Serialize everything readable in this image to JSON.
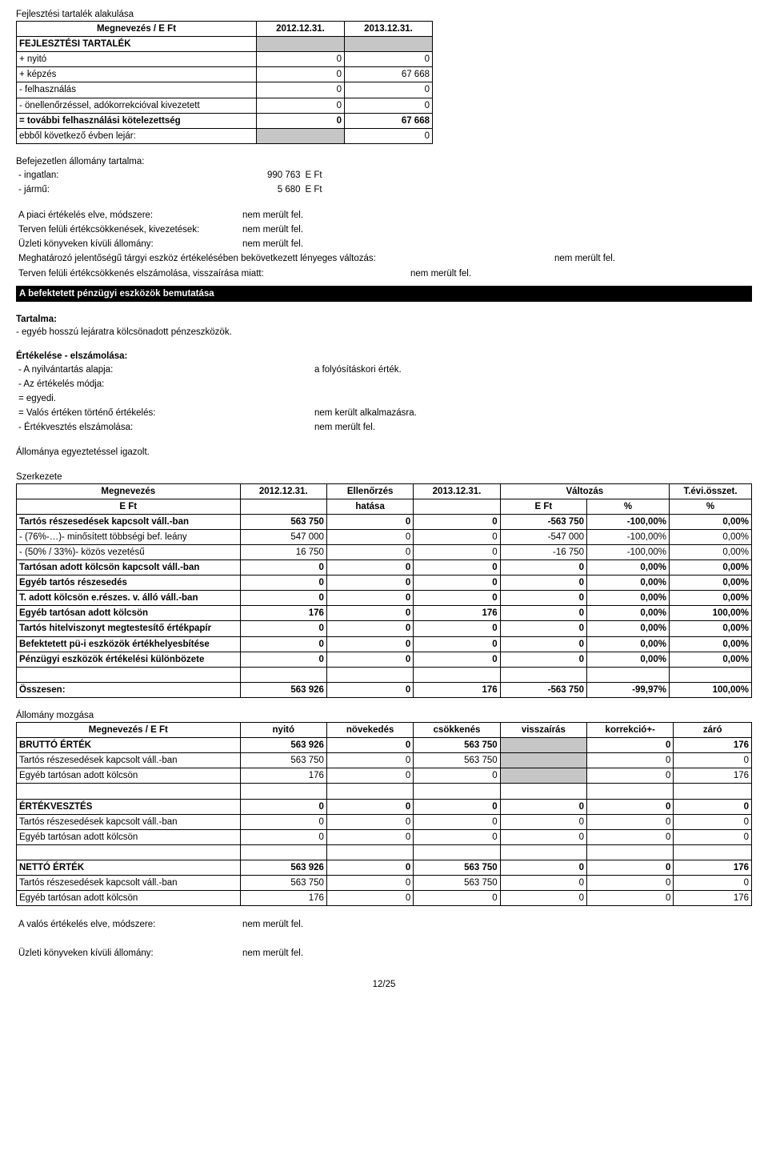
{
  "page": {
    "footer": "12/25"
  },
  "t1": {
    "title": "Fejlesztési tartalék alakulása",
    "header": {
      "name": "Megnevezés / E Ft",
      "c1": "2012.12.31.",
      "c2": "2013.12.31."
    },
    "rows": [
      {
        "label": "FEJLESZTÉSI TARTALÉK",
        "v1": "",
        "v2": "",
        "bold": true,
        "grey": true
      },
      {
        "label": "+ nyitó",
        "v1": "0",
        "v2": "0"
      },
      {
        "label": "+ képzés",
        "v1": "0",
        "v2": "67 668"
      },
      {
        "label": "- felhasználás",
        "v1": "0",
        "v2": "0"
      },
      {
        "label": "- önellenőrzéssel, adókorrekcióval kivezetett",
        "v1": "0",
        "v2": "0"
      },
      {
        "label": "= további felhasználási kötelezettség",
        "v1": "0",
        "v2": "67 668",
        "bold": true
      },
      {
        "label": "ebből következő évben lejár:",
        "v1": "",
        "v2": "0",
        "greyC1": true
      }
    ]
  },
  "befejezetlen": {
    "title": "Befejezetlen állomány tartalma:",
    "rows": [
      {
        "label": "- ingatlan:",
        "val": "990 763",
        "unit": "E Ft"
      },
      {
        "label": "- jármű:",
        "val": "5 680",
        "unit": "E Ft"
      }
    ]
  },
  "piaci": {
    "rows": [
      {
        "label": "A piaci értékelés elve, módszere:",
        "val": "nem merült fel."
      },
      {
        "label": "Terven felüli értékcsökkenések, kivezetések:",
        "val": "nem merült fel."
      },
      {
        "label": "Üzleti könyveken kívüli állomány:",
        "val": "nem merült fel."
      }
    ],
    "line4": {
      "label": "Meghatározó jelentőségű tárgyi eszköz értékelésében bekövetkezett lényeges változás:",
      "val": "nem merült fel."
    },
    "line5": {
      "label": "Terven felüli értékcsökkenés elszámolása, visszaírása miatt:",
      "val": "nem merült fel."
    }
  },
  "bar1": "A befektetett pénzügyi eszközök bemutatása",
  "tartalma": {
    "title": "Tartalma:",
    "line": "- egyéb hosszú lejáratra kölcsönadott pénzeszközök."
  },
  "ertekeles": {
    "title": "Értékelése - elszámolása:",
    "rows": [
      {
        "label": "- A nyilvántartás alapja:",
        "val": "a folyósításkori érték."
      },
      {
        "label": "- Az értékelés módja:",
        "val": ""
      },
      {
        "label": "= egyedi.",
        "val": ""
      },
      {
        "label": "= Valós értéken történő értékelés:",
        "val": "nem került alkalmazásra."
      },
      {
        "label": "- Értékvesztés elszámolása:",
        "val": "nem merült fel."
      }
    ]
  },
  "allomanya": "Állománya egyeztetéssel igazolt.",
  "szerk": {
    "title": "Szerkezete",
    "header": {
      "name": "Megnevezés",
      "c1": "2012.12.31.",
      "c2": "Ellenőrzés",
      "c3": "2013.12.31.",
      "c4": "Változás",
      "c5": "T.évi.összet."
    },
    "sub": {
      "l": "E Ft",
      "c2": "hatása",
      "c4": "E Ft",
      "p1": "%",
      "p2": "%"
    },
    "rows": [
      {
        "label": "Tartós részesedések kapcsolt váll.-ban",
        "v1": "563 750",
        "v2": "0",
        "v3": "0",
        "v4": "-563 750",
        "p1": "-100,00%",
        "p2": "0,00%",
        "bold": true
      },
      {
        "label": "- (76%-…)- minősített többségi bef. leány",
        "v1": "547 000",
        "v2": "0",
        "v3": "0",
        "v4": "-547 000",
        "p1": "-100,00%",
        "p2": "0,00%"
      },
      {
        "label": "- (50% / 33%)- közös vezetésű",
        "v1": "16 750",
        "v2": "0",
        "v3": "0",
        "v4": "-16 750",
        "p1": "-100,00%",
        "p2": "0,00%"
      },
      {
        "label": "Tartósan adott kölcsön kapcsolt váll.-ban",
        "v1": "0",
        "v2": "0",
        "v3": "0",
        "v4": "0",
        "p1": "0,00%",
        "p2": "0,00%",
        "bold": true
      },
      {
        "label": "Egyéb tartós részesedés",
        "v1": "0",
        "v2": "0",
        "v3": "0",
        "v4": "0",
        "p1": "0,00%",
        "p2": "0,00%",
        "bold": true
      },
      {
        "label": "T. adott kölcsön e.részes. v. álló váll.-ban",
        "v1": "0",
        "v2": "0",
        "v3": "0",
        "v4": "0",
        "p1": "0,00%",
        "p2": "0,00%",
        "bold": true
      },
      {
        "label": "Egyéb tartósan adott kölcsön",
        "v1": "176",
        "v2": "0",
        "v3": "176",
        "v4": "0",
        "p1": "0,00%",
        "p2": "100,00%",
        "bold": true
      },
      {
        "label": "Tartós hitelviszonyt megtestesítő értékpapír",
        "v1": "0",
        "v2": "0",
        "v3": "0",
        "v4": "0",
        "p1": "0,00%",
        "p2": "0,00%",
        "bold": true
      },
      {
        "label": "Befektetett pü-i eszközök értékhelyesbítése",
        "v1": "0",
        "v2": "0",
        "v3": "0",
        "v4": "0",
        "p1": "0,00%",
        "p2": "0,00%",
        "bold": true
      },
      {
        "label": "Pénzügyi eszközök értékelési különbözete",
        "v1": "0",
        "v2": "0",
        "v3": "0",
        "v4": "0",
        "p1": "0,00%",
        "p2": "0,00%",
        "bold": true
      }
    ],
    "total": {
      "label": "Összesen:",
      "v1": "563 926",
      "v2": "0",
      "v3": "176",
      "v4": "-563 750",
      "p1": "-99,97%",
      "p2": "100,00%"
    }
  },
  "mozgas": {
    "title": "Állomány mozgása",
    "header": {
      "name": "Megnevezés / E Ft",
      "c1": "nyitó",
      "c2": "növekedés",
      "c3": "csökkenés",
      "c4": "visszaírás",
      "c5": "korrekció+-",
      "c6": "záró"
    },
    "groups": [
      {
        "head": {
          "label": "BRUTTÓ ÉRTÉK",
          "v": [
            "563 926",
            "0",
            "563 750",
            "",
            "0",
            "176"
          ],
          "grey4": true
        },
        "rows": [
          {
            "label": "Tartós részesedések kapcsolt váll.-ban",
            "v": [
              "563 750",
              "0",
              "563 750",
              "",
              "0",
              "0"
            ]
          },
          {
            "label": "Egyéb tartósan adott kölcsön",
            "v": [
              "176",
              "0",
              "0",
              "",
              "0",
              "176"
            ]
          }
        ]
      },
      {
        "head": {
          "label": "ÉRTÉKVESZTÉS",
          "v": [
            "0",
            "0",
            "0",
            "0",
            "0",
            "0"
          ]
        },
        "rows": [
          {
            "label": "Tartós részesedések kapcsolt váll.-ban",
            "v": [
              "0",
              "0",
              "0",
              "0",
              "0",
              "0"
            ]
          },
          {
            "label": "Egyéb tartósan adott kölcsön",
            "v": [
              "0",
              "0",
              "0",
              "0",
              "0",
              "0"
            ]
          }
        ]
      },
      {
        "head": {
          "label": "NETTÓ ÉRTÉK",
          "v": [
            "563 926",
            "0",
            "563 750",
            "0",
            "0",
            "176"
          ]
        },
        "rows": [
          {
            "label": "Tartós részesedések kapcsolt váll.-ban",
            "v": [
              "563 750",
              "0",
              "563 750",
              "0",
              "0",
              "0"
            ]
          },
          {
            "label": "Egyéb tartósan adott kölcsön",
            "v": [
              "176",
              "0",
              "0",
              "0",
              "0",
              "176"
            ]
          }
        ]
      }
    ]
  },
  "bottom": {
    "rows": [
      {
        "label": "A valós értékelés elve, módszere:",
        "val": "nem merült fel."
      },
      {
        "label": "Üzleti könyveken kívüli állomány:",
        "val": "nem merült fel."
      }
    ]
  }
}
